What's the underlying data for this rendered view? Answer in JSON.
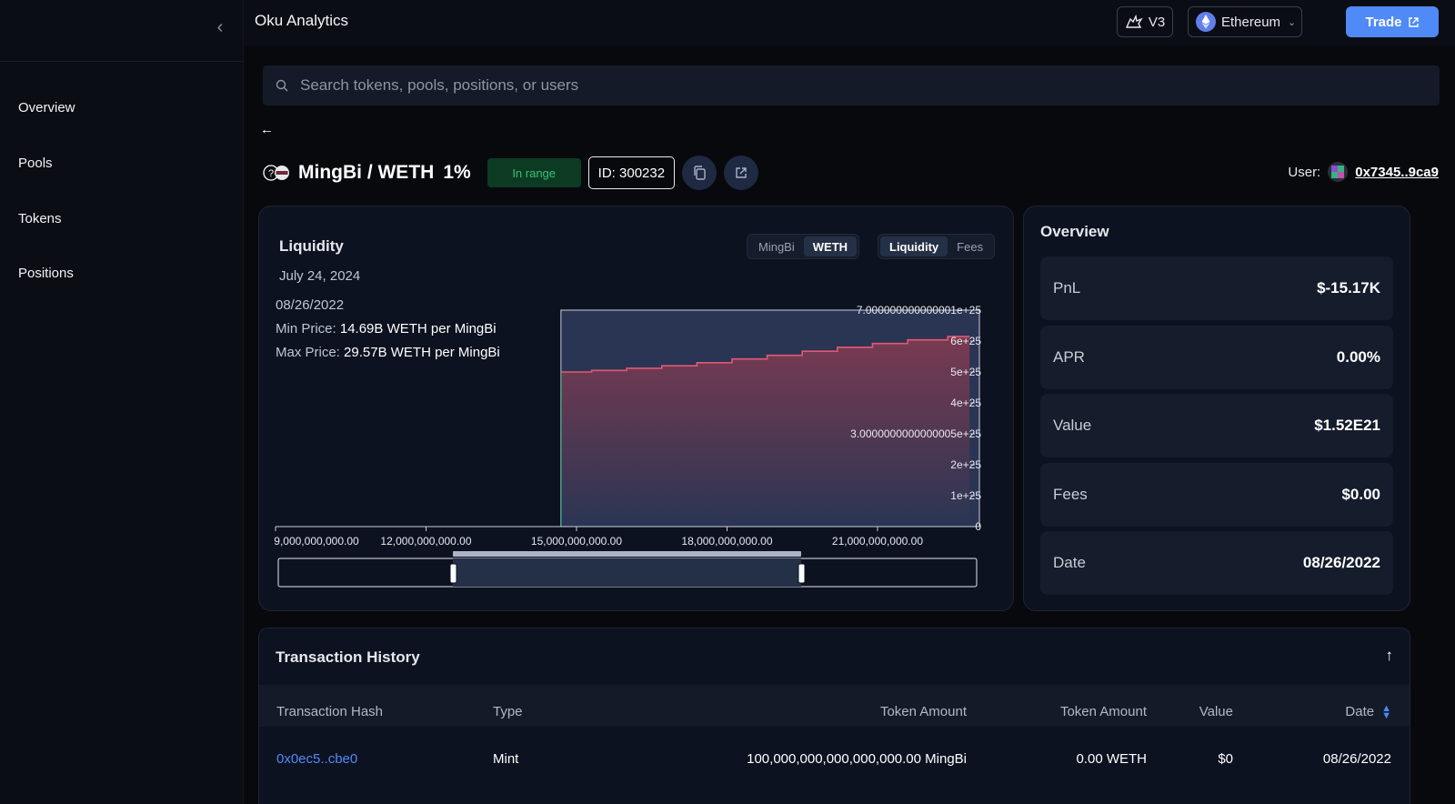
{
  "app": {
    "title": "Oku Analytics"
  },
  "sidebar": {
    "items": [
      {
        "label": "Overview"
      },
      {
        "label": "Pools"
      },
      {
        "label": "Tokens"
      },
      {
        "label": "Positions"
      }
    ]
  },
  "header": {
    "version": "V3",
    "network": "Ethereum",
    "trade_label": "Trade"
  },
  "search": {
    "placeholder": "Search tokens, pools, positions, or users"
  },
  "position": {
    "pair": "MingBi / WETH",
    "fee": "1%",
    "status": "In range",
    "id_label": "ID: 300232",
    "user_label": "User:",
    "user_address": "0x7345..9ca9"
  },
  "liquidity": {
    "title": "Liquidity",
    "date": "July 24, 2024",
    "token_toggle": [
      "MingBi",
      "WETH"
    ],
    "metric_toggle": [
      "Liquidity",
      "Fees"
    ],
    "info_date": "08/26/2022",
    "min_price_label": "Min Price:",
    "min_price_value": "14.69B WETH per MingBi",
    "max_price_label": "Max Price:",
    "max_price_value": "29.57B WETH per MingBi"
  },
  "chart_data": {
    "type": "area",
    "x_ticks": [
      "9,000,000,000.00",
      "12,000,000,000.00",
      "15,000,000,000.00",
      "18,000,000,000.00",
      "21,000,000,000.00"
    ],
    "y_ticks": [
      "7.000000000000001e+25",
      "6e+25",
      "5e+25",
      "4e+25",
      "3.0000000000000005e+25",
      "2e+25",
      "1e+25",
      "0"
    ],
    "xlim": [
      9000000000,
      22850000000
    ],
    "ylim": [
      0,
      7e+25
    ],
    "x": [
      14690000000,
      15300000000,
      16000000000,
      16700000000,
      17400000000,
      18100000000,
      18800000000,
      19500000000,
      20200000000,
      20900000000,
      21600000000,
      22400000000
    ],
    "y": [
      5e+25,
      5.05e+25,
      5.12e+25,
      5.2e+25,
      5.3e+25,
      5.42e+25,
      5.54e+25,
      5.67e+25,
      5.8e+25,
      5.92e+25,
      6.04e+25,
      6.15e+25
    ],
    "selected_range": [
      14690000000,
      22850000000
    ],
    "brush_range": [
      11800000000,
      19200000000
    ],
    "colors": {
      "fill_top": "#7a3a52",
      "fill_bottom": "#2a3553",
      "line": "#e05a73",
      "band": "#2a3553"
    }
  },
  "overview": {
    "title": "Overview",
    "rows": [
      {
        "label": "PnL",
        "value": "$-15.17K"
      },
      {
        "label": "APR",
        "value": "0.00%"
      },
      {
        "label": "Value",
        "value": "$1.52E21"
      },
      {
        "label": "Fees",
        "value": "$0.00"
      },
      {
        "label": "Date",
        "value": "08/26/2022"
      }
    ]
  },
  "transactions": {
    "title": "Transaction History",
    "columns": [
      "Transaction Hash",
      "Type",
      "Token Amount",
      "Token Amount",
      "Value",
      "Date"
    ],
    "rows": [
      {
        "hash": "0x0ec5..cbe0",
        "type": "Mint",
        "amount0": "100,000,000,000,000,000.00 MingBi",
        "amount1": "0.00 WETH",
        "value": "$0",
        "date": "08/26/2022"
      }
    ]
  },
  "colors": {
    "accent": "#4f8af7",
    "in_range_bg": "#0d3a23",
    "in_range_text": "#38c172",
    "link": "#4f8af7"
  }
}
